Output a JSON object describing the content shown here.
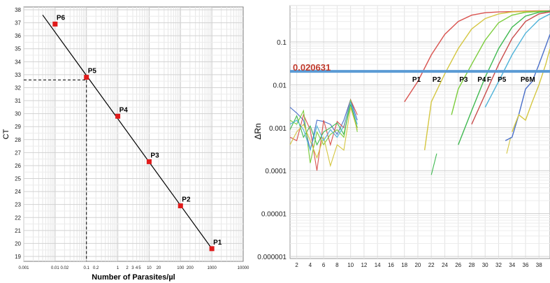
{
  "left_chart": {
    "ylabel": "CT",
    "xlabel": "Number of Parasites/µl",
    "ytick_labels": [
      "19",
      "20",
      "21",
      "22",
      "23",
      "24",
      "25",
      "26",
      "27",
      "28",
      "29",
      "30",
      "31",
      "32",
      "33",
      "34",
      "35",
      "36",
      "37",
      "38"
    ],
    "xtick_labels": [
      "0.001",
      "0.01",
      "0.02",
      "0.1",
      "0.2",
      "1",
      "2",
      "3",
      "4",
      "5",
      "10",
      "20",
      "100",
      "200",
      "1000",
      "10000"
    ]
  },
  "right_chart": {
    "ylabel": "ΔRn",
    "threshold_label": "0.020631",
    "ytick_labels": [
      "0.1",
      "0.01",
      "0.001",
      "0.0001",
      "0.00001",
      "0.000001"
    ],
    "xtick_labels": [
      "2",
      "4",
      "6",
      "8",
      "10",
      "12",
      "14",
      "16",
      "18",
      "20",
      "22",
      "24",
      "26",
      "28",
      "30",
      "32",
      "34",
      "36",
      "38"
    ],
    "curve_labels": [
      "P1",
      "P2",
      "P3",
      "P4",
      "F",
      "P5",
      "P6",
      "M"
    ]
  },
  "chart_data": [
    {
      "type": "scatter",
      "xlabel": "Number of Parasites/µl",
      "ylabel": "CT",
      "x_scale": "log",
      "xlim": [
        0.001,
        10000
      ],
      "ylim": [
        19,
        38
      ],
      "grid": true,
      "points": [
        {
          "label": "P6",
          "x": 0.01,
          "y": 36.9
        },
        {
          "label": "P5",
          "x": 0.1,
          "y": 32.8
        },
        {
          "label": "P4",
          "x": 1,
          "y": 29.8
        },
        {
          "label": "P3",
          "x": 10,
          "y": 26.3
        },
        {
          "label": "P2",
          "x": 100,
          "y": 22.9
        },
        {
          "label": "P1",
          "x": 1000,
          "y": 19.6
        }
      ],
      "fit_line": {
        "x": [
          0.004,
          1000
        ],
        "y": [
          37.6,
          19.6
        ]
      },
      "reference_lines": {
        "x": 0.1,
        "y": 32.6,
        "style": "dashed"
      },
      "marker_color": "#e01b1b"
    },
    {
      "type": "line",
      "ylabel": "ΔRn",
      "y_scale": "log",
      "ylim": [
        1e-06,
        0.6
      ],
      "xlim": [
        1,
        40
      ],
      "grid": true,
      "threshold": {
        "y": 0.020631,
        "color": "#5b9bd5",
        "label": "0.020631",
        "label_color": "#c0392b"
      },
      "series": [
        {
          "name": "P1",
          "color": "#d9534f",
          "x": [
            18,
            20,
            22,
            24,
            26,
            28,
            30,
            32,
            34,
            36,
            38,
            40
          ],
          "y": [
            0.004,
            0.012,
            0.05,
            0.15,
            0.3,
            0.42,
            0.48,
            0.5,
            0.51,
            0.52,
            0.53,
            0.53
          ]
        },
        {
          "name": "P2",
          "color": "#d4c640",
          "x": [
            21,
            22,
            24,
            26,
            28,
            30,
            32,
            34,
            36,
            38,
            40
          ],
          "y": [
            0.0003,
            0.004,
            0.018,
            0.07,
            0.2,
            0.35,
            0.45,
            0.5,
            0.51,
            0.52,
            0.52
          ]
        },
        {
          "name": "P3",
          "color": "#7ccd3c",
          "x": [
            25,
            26,
            28,
            30,
            32,
            34,
            36,
            38,
            40
          ],
          "y": [
            0.002,
            0.008,
            0.03,
            0.11,
            0.28,
            0.42,
            0.49,
            0.51,
            0.52
          ]
        },
        {
          "name": "P4",
          "color": "#3fb950",
          "x": [
            26,
            28,
            30,
            32,
            34,
            36,
            38,
            40
          ],
          "y": [
            0.0004,
            0.0025,
            0.015,
            0.07,
            0.22,
            0.4,
            0.49,
            0.52
          ]
        },
        {
          "name": "F",
          "color": "#c94a4a",
          "x": [
            28,
            30,
            32,
            34,
            36,
            38,
            40
          ],
          "y": [
            0.0012,
            0.006,
            0.03,
            0.12,
            0.3,
            0.45,
            0.5
          ]
        },
        {
          "name": "P5",
          "color": "#4fb3d9",
          "x": [
            30,
            32,
            34,
            36,
            38,
            40
          ],
          "y": [
            0.003,
            0.012,
            0.05,
            0.16,
            0.33,
            0.45
          ]
        },
        {
          "name": "P6",
          "color": "#4a6fc9",
          "x": [
            33,
            34,
            35,
            36,
            37,
            38,
            39,
            40
          ],
          "y": [
            0.0005,
            0.0006,
            0.002,
            0.008,
            0.012,
            0.03,
            0.08,
            0.15
          ]
        },
        {
          "name": "M",
          "color": "#d4c640",
          "x": [
            34,
            35,
            36,
            37,
            38,
            39,
            40
          ],
          "y": [
            0.0008,
            0.002,
            0.0015,
            0.004,
            0.01,
            0.03,
            0.07
          ]
        }
      ],
      "background_curves": [
        {
          "color": "#4a6fc9",
          "x": [
            1,
            2,
            3,
            4,
            5,
            6,
            7,
            8,
            9,
            10,
            11
          ],
          "y": [
            0.003,
            0.0022,
            0.0015,
            0.0003,
            0.0015,
            0.0014,
            0.0012,
            0.0007,
            0.0015,
            0.0045,
            0.0015
          ]
        },
        {
          "color": "#d9534f",
          "x": [
            1,
            2,
            3,
            4,
            5,
            6,
            7,
            8,
            9,
            10,
            11
          ],
          "y": [
            0.0006,
            0.0005,
            0.002,
            0.0009,
            0.0001,
            0.0015,
            0.0004,
            0.0014,
            0.001,
            0.0045,
            0.002
          ]
        },
        {
          "color": "#7ccd3c",
          "x": [
            1,
            2,
            3,
            4,
            5,
            6,
            7,
            8,
            9,
            10,
            11
          ],
          "y": [
            0.0015,
            0.0012,
            0.0025,
            0.00015,
            0.0008,
            0.0004,
            0.0007,
            0.0009,
            0.0006,
            0.0045,
            0.0008
          ]
        },
        {
          "color": "#3fb950",
          "x": [
            1,
            2,
            3,
            4,
            5,
            6,
            7,
            8,
            9,
            10,
            11
          ],
          "y": [
            0.0009,
            0.0019,
            0.0006,
            0.0011,
            0.0004,
            0.0008,
            0.001,
            0.0013,
            0.0007,
            0.0035,
            0.001
          ]
        },
        {
          "color": "#d4c640",
          "x": [
            1,
            2,
            3,
            4,
            5,
            6,
            7,
            8,
            9,
            10,
            11
          ],
          "y": [
            0.0004,
            0.0008,
            0.0012,
            0.0005,
            0.0002,
            0.0006,
            0.00013,
            0.0004,
            0.0003,
            0.003,
            0.0009
          ]
        },
        {
          "color": "#4fb3d9",
          "x": [
            1,
            2,
            3,
            4,
            5,
            6,
            7,
            8,
            9,
            10,
            11
          ],
          "y": [
            0.0012,
            0.0015,
            0.0009,
            0.0003,
            0.0011,
            0.0005,
            0.0009,
            0.0006,
            0.0011,
            0.004,
            0.0012
          ]
        }
      ],
      "partial_curves": [
        {
          "color": "#3fb950",
          "x": [
            22,
            22.8
          ],
          "y": [
            8e-05,
            0.00025
          ]
        },
        {
          "color": "#d4c640",
          "x": [
            33.2,
            33.8
          ],
          "y": [
            0.00025,
            0.0006
          ]
        }
      ]
    }
  ]
}
